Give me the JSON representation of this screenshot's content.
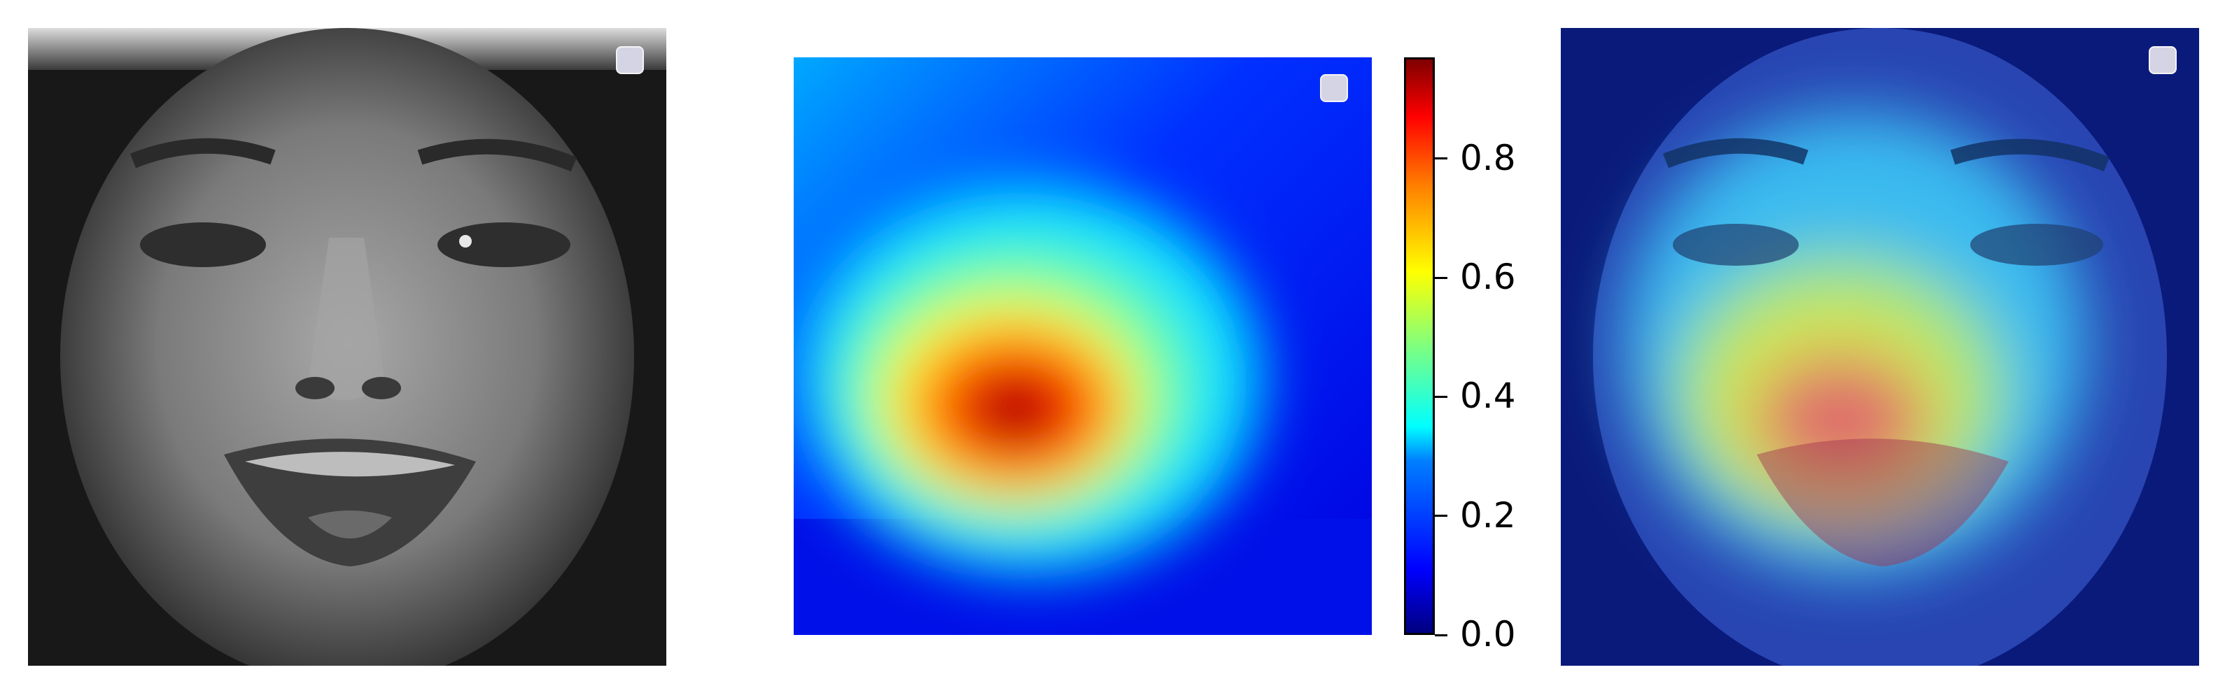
{
  "panels": [
    {
      "name": "grayscale-face-image"
    },
    {
      "name": "attention-heatmap"
    },
    {
      "name": "heatmap-overlay-on-face"
    }
  ],
  "colorbar": {
    "colormap": "jet",
    "range": [
      0.0,
      0.97
    ],
    "ticks": [
      {
        "value": 0.0,
        "label": "0.0"
      },
      {
        "value": 0.2,
        "label": "0.2"
      },
      {
        "value": 0.4,
        "label": "0.4"
      },
      {
        "value": 0.6,
        "label": "0.6"
      },
      {
        "value": 0.8,
        "label": "0.8"
      }
    ]
  },
  "colors": {
    "background": "#ffffff",
    "legend_box": "#d4d4e4",
    "jet_low": "#00007f",
    "jet_high": "#7f0000"
  }
}
